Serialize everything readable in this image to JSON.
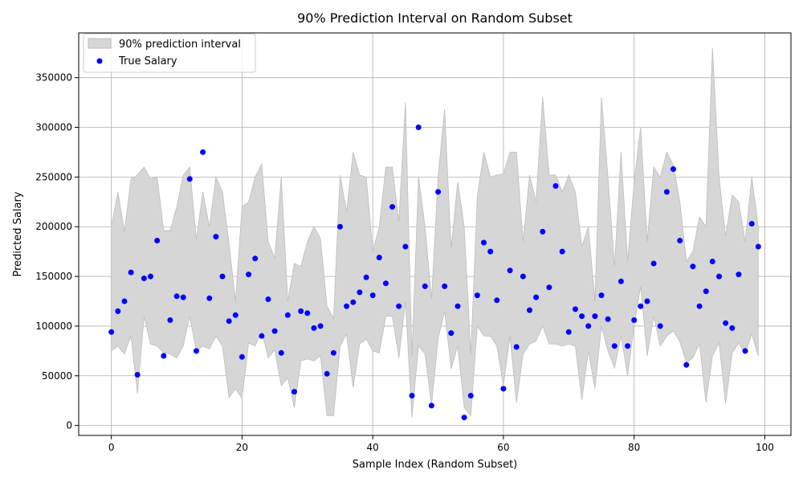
{
  "chart_data": {
    "type": "scatter",
    "title": "90% Prediction Interval on Random Subset",
    "xlabel": "Sample Index (Random Subset)",
    "ylabel": "Predicted Salary",
    "xlim": [
      -5,
      104
    ],
    "ylim": [
      -10000,
      395000
    ],
    "xticks": [
      0,
      20,
      40,
      60,
      80,
      100
    ],
    "yticks": [
      0,
      50000,
      100000,
      150000,
      200000,
      250000,
      300000,
      350000
    ],
    "ytick_labels": [
      "0",
      "50000",
      "100000",
      "150000",
      "200000",
      "250000",
      "300000",
      "350000"
    ],
    "grid": true,
    "legend_position": "top-left",
    "legend": [
      "90% prediction interval",
      "True Salary"
    ],
    "colors": {
      "interval": "#d6d6d6",
      "interval_edge": "#bdbdbd",
      "points": "#0000ff"
    },
    "interval": {
      "name": "90% prediction interval",
      "x": [
        0,
        1,
        2,
        3,
        4,
        5,
        6,
        7,
        8,
        9,
        10,
        11,
        12,
        13,
        14,
        15,
        16,
        17,
        18,
        19,
        20,
        21,
        22,
        23,
        24,
        25,
        26,
        27,
        28,
        29,
        30,
        31,
        32,
        33,
        34,
        35,
        36,
        37,
        38,
        39,
        40,
        41,
        42,
        43,
        44,
        45,
        46,
        47,
        48,
        49,
        50,
        51,
        52,
        53,
        54,
        55,
        56,
        57,
        58,
        59,
        60,
        61,
        62,
        63,
        64,
        65,
        66,
        67,
        68,
        69,
        70,
        71,
        72,
        73,
        74,
        75,
        76,
        77,
        78,
        79,
        80,
        81,
        82,
        83,
        84,
        85,
        86,
        87,
        88,
        89,
        90,
        91,
        92,
        93,
        94,
        95,
        96,
        97,
        98,
        99
      ],
      "lower": [
        75000,
        80000,
        72000,
        90000,
        32000,
        110000,
        82000,
        80000,
        73000,
        72000,
        68000,
        80000,
        110000,
        75000,
        80000,
        77000,
        90000,
        80000,
        28000,
        37000,
        27000,
        83000,
        80000,
        95000,
        68000,
        76000,
        40000,
        48000,
        18000,
        65000,
        67000,
        65000,
        70000,
        10000,
        10000,
        80000,
        92000,
        38000,
        82000,
        87000,
        75000,
        73000,
        110000,
        110000,
        68000,
        125000,
        8000,
        80000,
        72000,
        20000,
        88000,
        115000,
        57000,
        80000,
        18000,
        10000,
        100000,
        90000,
        90000,
        80000,
        40000,
        90000,
        23000,
        72000,
        82000,
        85000,
        100000,
        82000,
        82000,
        80000,
        82000,
        80000,
        26000,
        75000,
        37000,
        100000,
        75000,
        58000,
        90000,
        50000,
        100000,
        140000,
        70000,
        110000,
        80000,
        90000,
        95000,
        84000,
        63000,
        68000,
        82000,
        23000,
        70000,
        83000,
        22000,
        73000,
        83000,
        72000,
        92000,
        70000
      ],
      "upper": [
        200000,
        235000,
        195000,
        248000,
        252000,
        260000,
        248000,
        250000,
        196000,
        196000,
        220000,
        252000,
        260000,
        187000,
        235000,
        200000,
        250000,
        235000,
        183000,
        125000,
        220000,
        225000,
        250000,
        263000,
        185000,
        168000,
        250000,
        125000,
        163000,
        160000,
        185000,
        200000,
        188000,
        120000,
        108000,
        252000,
        215000,
        275000,
        252000,
        250000,
        175000,
        200000,
        260000,
        260000,
        205000,
        325000,
        70000,
        250000,
        200000,
        127000,
        250000,
        318000,
        178000,
        245000,
        200000,
        72000,
        230000,
        275000,
        250000,
        252000,
        253000,
        275000,
        275000,
        185000,
        252000,
        225000,
        330000,
        252000,
        252000,
        235000,
        252000,
        235000,
        180000,
        200000,
        125000,
        330000,
        250000,
        160000,
        275000,
        165000,
        245000,
        300000,
        185000,
        260000,
        250000,
        275000,
        262000,
        225000,
        165000,
        175000,
        210000,
        200000,
        380000,
        250000,
        190000,
        232000,
        225000,
        185000,
        250000,
        200000
      ]
    },
    "series": [
      {
        "name": "True Salary",
        "x": [
          0,
          1,
          2,
          3,
          4,
          5,
          6,
          7,
          8,
          9,
          10,
          11,
          12,
          13,
          14,
          15,
          16,
          17,
          18,
          19,
          20,
          21,
          22,
          23,
          24,
          25,
          26,
          27,
          28,
          29,
          30,
          31,
          32,
          33,
          34,
          35,
          36,
          37,
          38,
          39,
          40,
          41,
          42,
          43,
          44,
          45,
          46,
          47,
          48,
          49,
          50,
          51,
          52,
          53,
          54,
          55,
          56,
          57,
          58,
          59,
          60,
          61,
          62,
          63,
          64,
          65,
          66,
          67,
          68,
          69,
          70,
          71,
          72,
          73,
          74,
          75,
          76,
          77,
          78,
          79,
          80,
          81,
          82,
          83,
          84,
          85,
          86,
          87,
          88,
          89,
          90,
          91,
          92,
          93,
          94,
          95,
          96,
          97,
          98,
          99
        ],
        "y": [
          94000,
          115000,
          125000,
          154000,
          51000,
          148000,
          150000,
          186000,
          70000,
          106000,
          130000,
          129000,
          248000,
          75000,
          275000,
          128000,
          190000,
          150000,
          105000,
          111000,
          69000,
          152000,
          168000,
          90000,
          127000,
          95000,
          73000,
          111000,
          34000,
          115000,
          113000,
          98000,
          100000,
          52000,
          73000,
          200000,
          120000,
          124000,
          134000,
          149000,
          131000,
          169000,
          143000,
          220000,
          120000,
          180000,
          30000,
          300000,
          140000,
          20000,
          235000,
          140000,
          93000,
          120000,
          8000,
          30000,
          131000,
          184000,
          175000,
          126000,
          37000,
          156000,
          79000,
          150000,
          116000,
          129000,
          195000,
          139000,
          241000,
          175000,
          94000,
          117000,
          110000,
          100000,
          110000,
          131000,
          107000,
          80000,
          145000,
          80000,
          106000,
          120000,
          125000,
          163000,
          100000,
          235000,
          258000,
          186000,
          61000,
          160000,
          120000,
          135000,
          165000,
          150000,
          103000,
          98000,
          152000,
          75000,
          203000,
          180000
        ]
      }
    ]
  }
}
